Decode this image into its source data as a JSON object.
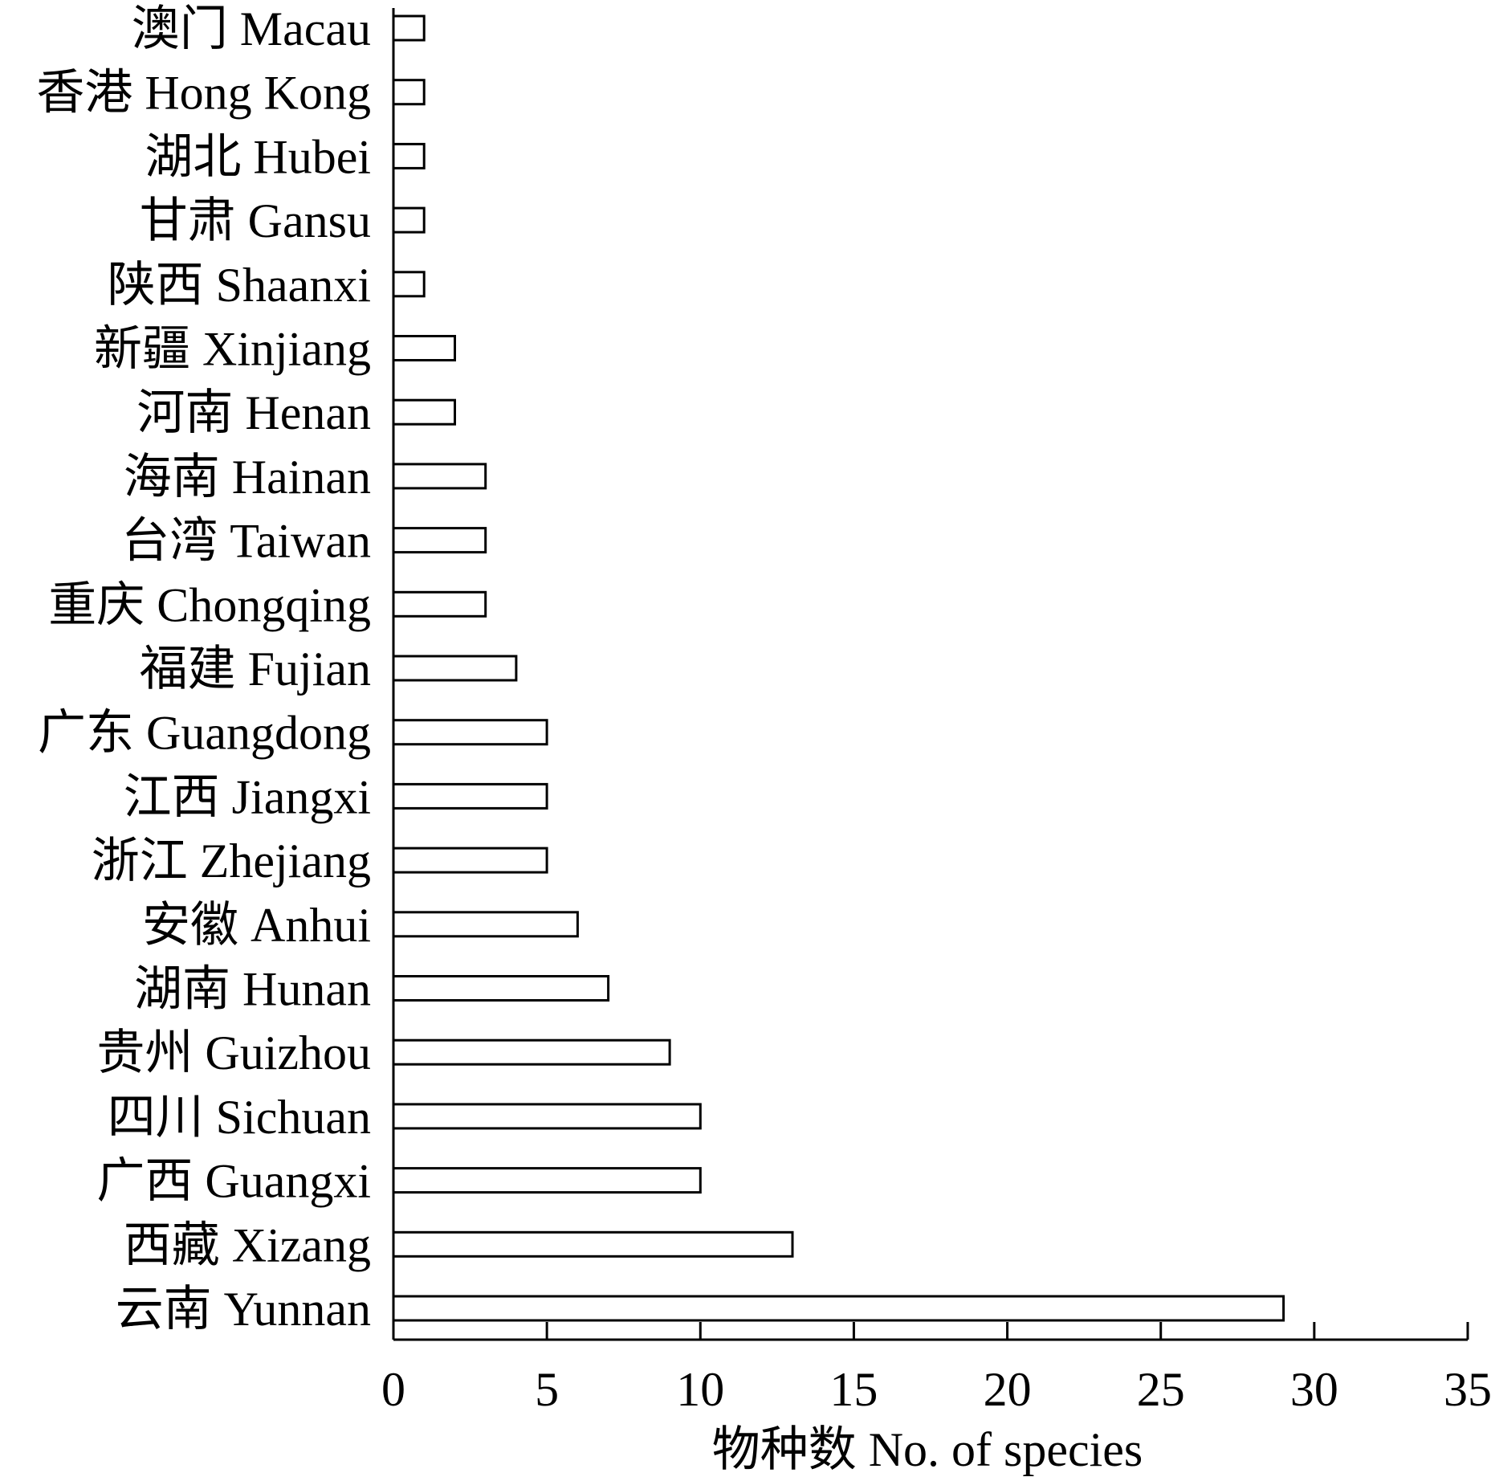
{
  "chart_data": {
    "type": "bar",
    "orientation": "horizontal",
    "categories": [
      "澳门 Macau",
      "香港 Hong Kong",
      "湖北 Hubei",
      "甘肃 Gansu",
      "陕西 Shaanxi",
      "新疆 Xinjiang",
      "河南 Henan",
      "海南 Hainan",
      "台湾 Taiwan",
      "重庆 Chongqing",
      "福建 Fujian",
      "广东 Guangdong",
      "江西 Jiangxi",
      "浙江 Zhejiang",
      "安徽 Anhui",
      "湖南 Hunan",
      "贵州 Guizhou",
      "四川 Sichuan",
      "广西 Guangxi",
      "西藏 Xizang",
      "云南 Yunnan"
    ],
    "values": [
      1,
      1,
      1,
      1,
      1,
      2,
      2,
      3,
      3,
      3,
      4,
      5,
      5,
      5,
      6,
      7,
      9,
      10,
      10,
      13,
      29
    ],
    "xlabel": "物种数 No. of species",
    "ylabel": "",
    "title": "",
    "xlim": [
      0,
      35
    ],
    "xticks": [
      0,
      5,
      10,
      15,
      20,
      25,
      30,
      35
    ],
    "grid": false,
    "legend": "none",
    "bar_fill": "#ffffff",
    "bar_stroke": "#000000"
  }
}
